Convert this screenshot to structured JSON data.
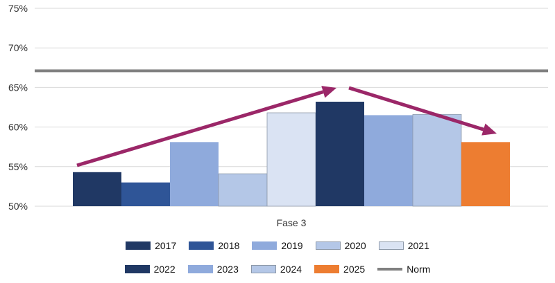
{
  "chart_data": {
    "type": "bar",
    "title": "",
    "xlabel": "",
    "ylabel": "",
    "categories": [
      "Fase 3"
    ],
    "ylim": [
      0.5,
      0.75
    ],
    "yticks": [
      "50%",
      "55%",
      "60%",
      "65%",
      "70%",
      "75%"
    ],
    "ytick_values": [
      0.5,
      0.55,
      0.6,
      0.65,
      0.7,
      0.75
    ],
    "grid": true,
    "legend_position": "bottom",
    "series": [
      {
        "name": "2017",
        "values": [
          0.543
        ],
        "color": "#203864"
      },
      {
        "name": "2018",
        "values": [
          0.53
        ],
        "color": "#2f5597"
      },
      {
        "name": "2019",
        "values": [
          0.581
        ],
        "color": "#8faadc"
      },
      {
        "name": "2020",
        "values": [
          0.541
        ],
        "color": "#b4c7e7"
      },
      {
        "name": "2021",
        "values": [
          0.618
        ],
        "color": "#dae3f3"
      },
      {
        "name": "2022",
        "values": [
          0.632
        ],
        "color": "#203864"
      },
      {
        "name": "2023",
        "values": [
          0.615
        ],
        "color": "#8faadc"
      },
      {
        "name": "2024",
        "values": [
          0.616
        ],
        "color": "#b4c7e7"
      },
      {
        "name": "2025",
        "values": [
          0.581
        ],
        "color": "#ed7d31"
      }
    ],
    "norm": {
      "name": "Norm",
      "value": 0.671,
      "color": "#808080"
    },
    "arrow_color": "#9b2768",
    "legend_rows": [
      [
        "2017",
        "2018",
        "2019",
        "2020",
        "2021"
      ],
      [
        "2022",
        "2023",
        "2024",
        "2025",
        "Norm"
      ]
    ]
  }
}
